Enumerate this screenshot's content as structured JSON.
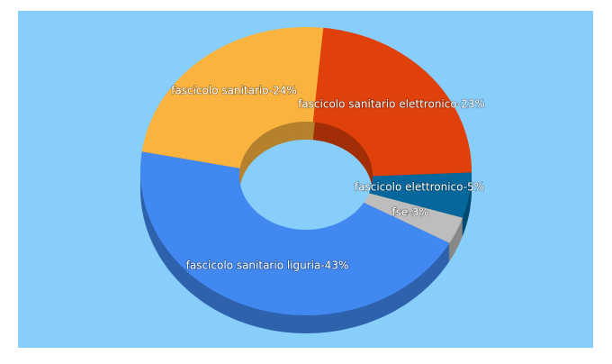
{
  "chart_data": {
    "type": "pie",
    "values": [
      23,
      5,
      3,
      43,
      24
    ],
    "value_labels": [
      "fascicolo sanitario elettronico-23%",
      "fascicolo elettronico-5%",
      "fse-3%",
      "fascicolo sanitario liguria-43%",
      "fascicolo sanitario-24%"
    ],
    "colors": [
      "#e0400a",
      "#05679b",
      "#bdbdbd",
      "#4188f0",
      "#fbb33f"
    ],
    "donut": true
  }
}
